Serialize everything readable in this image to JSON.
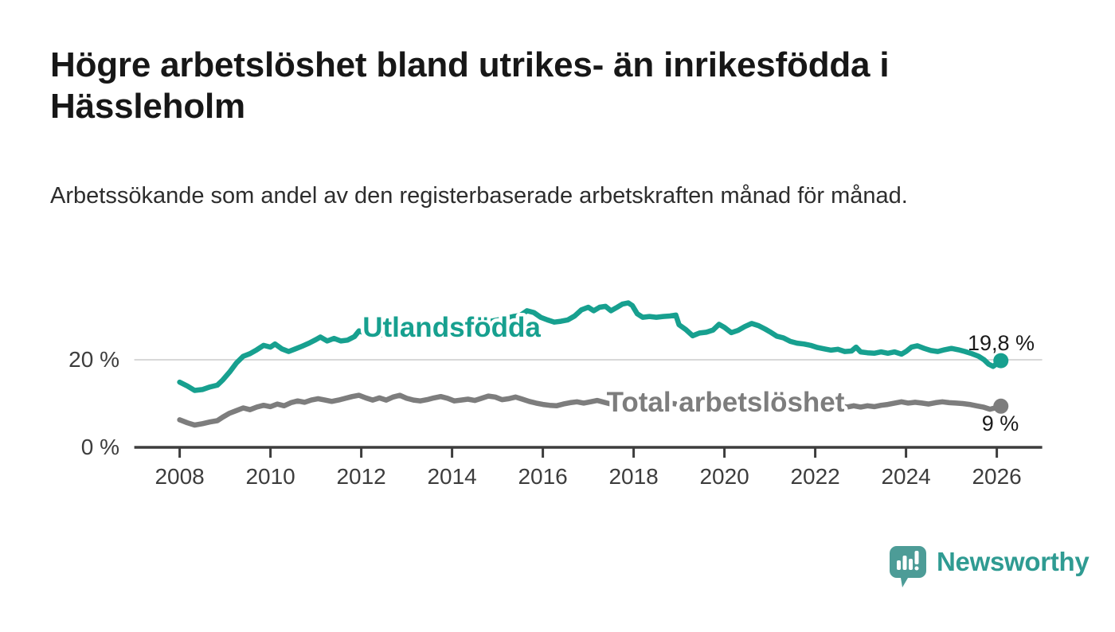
{
  "page": {
    "title": "Högre arbetslöshet bland utrikes- än inrikesfödda i Hässleholm",
    "subtitle": "Arbetssökande som andel av den registerbaserade arbetskraften månad för månad."
  },
  "branding": {
    "logo_text": "Newsworthy",
    "logo_icon": "bar-chart-speech-bubble-icon",
    "logo_icon_color": "#4d9c97",
    "logo_text_color": "#2f9b92"
  },
  "colors": {
    "axis": "#3d3d3d",
    "grid": "#d8d8d8",
    "tick_label": "#3d3d3d",
    "value_label": "#1a1a1a",
    "series_foreign_born": "#17a08f",
    "series_total": "#7d7d7d"
  },
  "chart_data": {
    "type": "line",
    "title": "",
    "xlabel": "",
    "ylabel": "",
    "grid": "horizontal-20-only",
    "legend_position": "inline-labels",
    "xlim": [
      2007.0,
      2027.0
    ],
    "ylim": [
      0,
      36.5
    ],
    "x_ticks": [
      {
        "value": 2008,
        "label": "2008"
      },
      {
        "value": 2010,
        "label": "2010"
      },
      {
        "value": 2012,
        "label": "2012"
      },
      {
        "value": 2014,
        "label": "2014"
      },
      {
        "value": 2016,
        "label": "2016"
      },
      {
        "value": 2018,
        "label": "2018"
      },
      {
        "value": 2020,
        "label": "2020"
      },
      {
        "value": 2022,
        "label": "2022"
      },
      {
        "value": 2024,
        "label": "2024"
      },
      {
        "value": 2026,
        "label": "2026"
      }
    ],
    "y_ticks": [
      {
        "value": 0,
        "label": "0 %",
        "grid": false
      },
      {
        "value": 20,
        "label": "20 %",
        "grid": true
      }
    ],
    "series": [
      {
        "name": "Utlandsfödda",
        "color": "#17a08f",
        "end_label": "19,8 %",
        "end_value": 19.8,
        "points": [
          [
            2008.0,
            14.9
          ],
          [
            2008.17,
            14.0
          ],
          [
            2008.33,
            13.0
          ],
          [
            2008.5,
            13.2
          ],
          [
            2008.67,
            13.8
          ],
          [
            2008.83,
            14.2
          ],
          [
            2008.95,
            15.4
          ],
          [
            2009.1,
            17.2
          ],
          [
            2009.25,
            19.3
          ],
          [
            2009.4,
            20.8
          ],
          [
            2009.55,
            21.4
          ],
          [
            2009.7,
            22.3
          ],
          [
            2009.85,
            23.3
          ],
          [
            2010.0,
            22.9
          ],
          [
            2010.1,
            23.6
          ],
          [
            2010.25,
            22.5
          ],
          [
            2010.4,
            21.9
          ],
          [
            2010.55,
            22.5
          ],
          [
            2010.7,
            23.1
          ],
          [
            2010.85,
            23.8
          ],
          [
            2011.0,
            24.6
          ],
          [
            2011.1,
            25.2
          ],
          [
            2011.25,
            24.3
          ],
          [
            2011.4,
            24.9
          ],
          [
            2011.55,
            24.3
          ],
          [
            2011.7,
            24.5
          ],
          [
            2011.85,
            25.3
          ],
          [
            2011.95,
            26.6
          ],
          [
            2012.05,
            26.2
          ],
          [
            2012.2,
            25.1
          ],
          [
            2012.35,
            25.4
          ],
          [
            2012.5,
            25.9
          ],
          [
            2012.65,
            26.3
          ],
          [
            2012.8,
            26.0
          ],
          [
            2012.95,
            26.4
          ],
          [
            2013.1,
            26.2
          ],
          [
            2013.25,
            26.7
          ],
          [
            2013.4,
            26.5
          ],
          [
            2013.55,
            27.0
          ],
          [
            2013.7,
            27.3
          ],
          [
            2013.85,
            27.1
          ],
          [
            2014.0,
            27.5
          ],
          [
            2014.15,
            27.8
          ],
          [
            2014.3,
            28.1
          ],
          [
            2014.45,
            28.4
          ],
          [
            2014.6,
            28.2
          ],
          [
            2014.75,
            28.6
          ],
          [
            2014.9,
            28.9
          ],
          [
            2015.05,
            29.2
          ],
          [
            2015.2,
            29.5
          ],
          [
            2015.35,
            29.9
          ],
          [
            2015.5,
            30.1
          ],
          [
            2015.65,
            31.2
          ],
          [
            2015.8,
            30.8
          ],
          [
            2015.95,
            29.7
          ],
          [
            2016.1,
            29.1
          ],
          [
            2016.25,
            28.6
          ],
          [
            2016.4,
            28.8
          ],
          [
            2016.55,
            29.1
          ],
          [
            2016.7,
            30.0
          ],
          [
            2016.85,
            31.4
          ],
          [
            2017.0,
            32.0
          ],
          [
            2017.12,
            31.2
          ],
          [
            2017.25,
            32.0
          ],
          [
            2017.38,
            32.2
          ],
          [
            2017.5,
            31.2
          ],
          [
            2017.62,
            31.9
          ],
          [
            2017.75,
            32.7
          ],
          [
            2017.88,
            33.0
          ],
          [
            2017.97,
            32.4
          ],
          [
            2018.08,
            30.5
          ],
          [
            2018.2,
            29.7
          ],
          [
            2018.35,
            29.9
          ],
          [
            2018.5,
            29.7
          ],
          [
            2018.65,
            29.9
          ],
          [
            2018.8,
            30.0
          ],
          [
            2018.93,
            30.2
          ],
          [
            2019.0,
            28.0
          ],
          [
            2019.15,
            26.9
          ],
          [
            2019.3,
            25.5
          ],
          [
            2019.45,
            26.1
          ],
          [
            2019.6,
            26.3
          ],
          [
            2019.75,
            26.8
          ],
          [
            2019.88,
            28.1
          ],
          [
            2020.0,
            27.4
          ],
          [
            2020.15,
            26.2
          ],
          [
            2020.3,
            26.7
          ],
          [
            2020.45,
            27.6
          ],
          [
            2020.6,
            28.3
          ],
          [
            2020.75,
            27.8
          ],
          [
            2020.9,
            27.0
          ],
          [
            2021.0,
            26.4
          ],
          [
            2021.15,
            25.4
          ],
          [
            2021.3,
            25.0
          ],
          [
            2021.45,
            24.2
          ],
          [
            2021.6,
            23.8
          ],
          [
            2021.75,
            23.6
          ],
          [
            2021.9,
            23.3
          ],
          [
            2022.05,
            22.8
          ],
          [
            2022.2,
            22.5
          ],
          [
            2022.35,
            22.2
          ],
          [
            2022.5,
            22.4
          ],
          [
            2022.65,
            21.9
          ],
          [
            2022.8,
            22.0
          ],
          [
            2022.9,
            22.9
          ],
          [
            2023.0,
            21.8
          ],
          [
            2023.15,
            21.6
          ],
          [
            2023.3,
            21.5
          ],
          [
            2023.45,
            21.8
          ],
          [
            2023.6,
            21.5
          ],
          [
            2023.75,
            21.8
          ],
          [
            2023.9,
            21.3
          ],
          [
            2024.0,
            21.9
          ],
          [
            2024.12,
            22.9
          ],
          [
            2024.25,
            23.2
          ],
          [
            2024.4,
            22.6
          ],
          [
            2024.55,
            22.1
          ],
          [
            2024.7,
            21.9
          ],
          [
            2024.85,
            22.3
          ],
          [
            2025.0,
            22.6
          ],
          [
            2025.15,
            22.3
          ],
          [
            2025.3,
            21.9
          ],
          [
            2025.45,
            21.4
          ],
          [
            2025.6,
            20.8
          ],
          [
            2025.72,
            20.0
          ],
          [
            2025.82,
            19.0
          ],
          [
            2025.92,
            18.5
          ],
          [
            2026.0,
            19.1
          ],
          [
            2026.09,
            19.8
          ]
        ]
      },
      {
        "name": "Total arbetslöshet",
        "color": "#7d7d7d",
        "end_label": "9 %",
        "end_value": 9,
        "points": [
          [
            2008.0,
            6.3
          ],
          [
            2008.17,
            5.6
          ],
          [
            2008.33,
            5.1
          ],
          [
            2008.5,
            5.4
          ],
          [
            2008.67,
            5.8
          ],
          [
            2008.83,
            6.1
          ],
          [
            2008.95,
            6.9
          ],
          [
            2009.1,
            7.8
          ],
          [
            2009.25,
            8.4
          ],
          [
            2009.4,
            9.0
          ],
          [
            2009.55,
            8.6
          ],
          [
            2009.7,
            9.2
          ],
          [
            2009.85,
            9.6
          ],
          [
            2010.0,
            9.3
          ],
          [
            2010.15,
            9.9
          ],
          [
            2010.3,
            9.5
          ],
          [
            2010.45,
            10.2
          ],
          [
            2010.6,
            10.6
          ],
          [
            2010.75,
            10.3
          ],
          [
            2010.9,
            10.8
          ],
          [
            2011.05,
            11.1
          ],
          [
            2011.2,
            10.8
          ],
          [
            2011.35,
            10.5
          ],
          [
            2011.5,
            10.8
          ],
          [
            2011.65,
            11.2
          ],
          [
            2011.8,
            11.6
          ],
          [
            2011.95,
            11.9
          ],
          [
            2012.1,
            11.3
          ],
          [
            2012.25,
            10.8
          ],
          [
            2012.4,
            11.3
          ],
          [
            2012.55,
            10.8
          ],
          [
            2012.7,
            11.5
          ],
          [
            2012.85,
            11.9
          ],
          [
            2013.0,
            11.2
          ],
          [
            2013.15,
            10.8
          ],
          [
            2013.3,
            10.6
          ],
          [
            2013.45,
            10.9
          ],
          [
            2013.6,
            11.3
          ],
          [
            2013.75,
            11.6
          ],
          [
            2013.9,
            11.2
          ],
          [
            2014.05,
            10.6
          ],
          [
            2014.2,
            10.8
          ],
          [
            2014.35,
            11.0
          ],
          [
            2014.5,
            10.7
          ],
          [
            2014.65,
            11.2
          ],
          [
            2014.8,
            11.7
          ],
          [
            2014.95,
            11.5
          ],
          [
            2015.1,
            10.9
          ],
          [
            2015.25,
            11.1
          ],
          [
            2015.4,
            11.5
          ],
          [
            2015.55,
            11.0
          ],
          [
            2015.7,
            10.5
          ],
          [
            2015.85,
            10.1
          ],
          [
            2016.0,
            9.8
          ],
          [
            2016.15,
            9.6
          ],
          [
            2016.3,
            9.5
          ],
          [
            2016.45,
            9.9
          ],
          [
            2016.6,
            10.2
          ],
          [
            2016.75,
            10.4
          ],
          [
            2016.9,
            10.1
          ],
          [
            2017.05,
            10.4
          ],
          [
            2017.2,
            10.7
          ],
          [
            2017.35,
            10.3
          ],
          [
            2017.5,
            9.9
          ],
          [
            2017.65,
            10.4
          ],
          [
            2017.8,
            10.6
          ],
          [
            2018.0,
            10.2
          ],
          [
            2018.2,
            10.4
          ],
          [
            2018.4,
            10.0
          ],
          [
            2018.6,
            10.3
          ],
          [
            2018.8,
            10.1
          ],
          [
            2019.0,
            9.8
          ],
          [
            2019.2,
            9.6
          ],
          [
            2019.4,
            9.9
          ],
          [
            2019.6,
            9.7
          ],
          [
            2019.8,
            10.0
          ],
          [
            2020.0,
            10.4
          ],
          [
            2020.2,
            11.0
          ],
          [
            2020.4,
            11.4
          ],
          [
            2020.6,
            11.1
          ],
          [
            2020.8,
            10.8
          ],
          [
            2021.0,
            10.5
          ],
          [
            2021.2,
            10.2
          ],
          [
            2021.4,
            10.0
          ],
          [
            2021.6,
            9.7
          ],
          [
            2021.8,
            9.5
          ],
          [
            2022.0,
            9.3
          ],
          [
            2022.2,
            9.1
          ],
          [
            2022.4,
            9.0
          ],
          [
            2022.55,
            9.5
          ],
          [
            2022.7,
            9.2
          ],
          [
            2022.85,
            9.5
          ],
          [
            2023.0,
            9.2
          ],
          [
            2023.15,
            9.5
          ],
          [
            2023.3,
            9.3
          ],
          [
            2023.45,
            9.6
          ],
          [
            2023.6,
            9.8
          ],
          [
            2023.75,
            10.1
          ],
          [
            2023.9,
            10.4
          ],
          [
            2024.05,
            10.1
          ],
          [
            2024.2,
            10.3
          ],
          [
            2024.35,
            10.1
          ],
          [
            2024.5,
            9.9
          ],
          [
            2024.65,
            10.2
          ],
          [
            2024.8,
            10.4
          ],
          [
            2024.95,
            10.2
          ],
          [
            2025.1,
            10.1
          ],
          [
            2025.25,
            10.0
          ],
          [
            2025.4,
            9.8
          ],
          [
            2025.55,
            9.5
          ],
          [
            2025.7,
            9.2
          ],
          [
            2025.85,
            8.7
          ],
          [
            2026.0,
            9.1
          ],
          [
            2026.09,
            9.4
          ]
        ]
      }
    ]
  }
}
